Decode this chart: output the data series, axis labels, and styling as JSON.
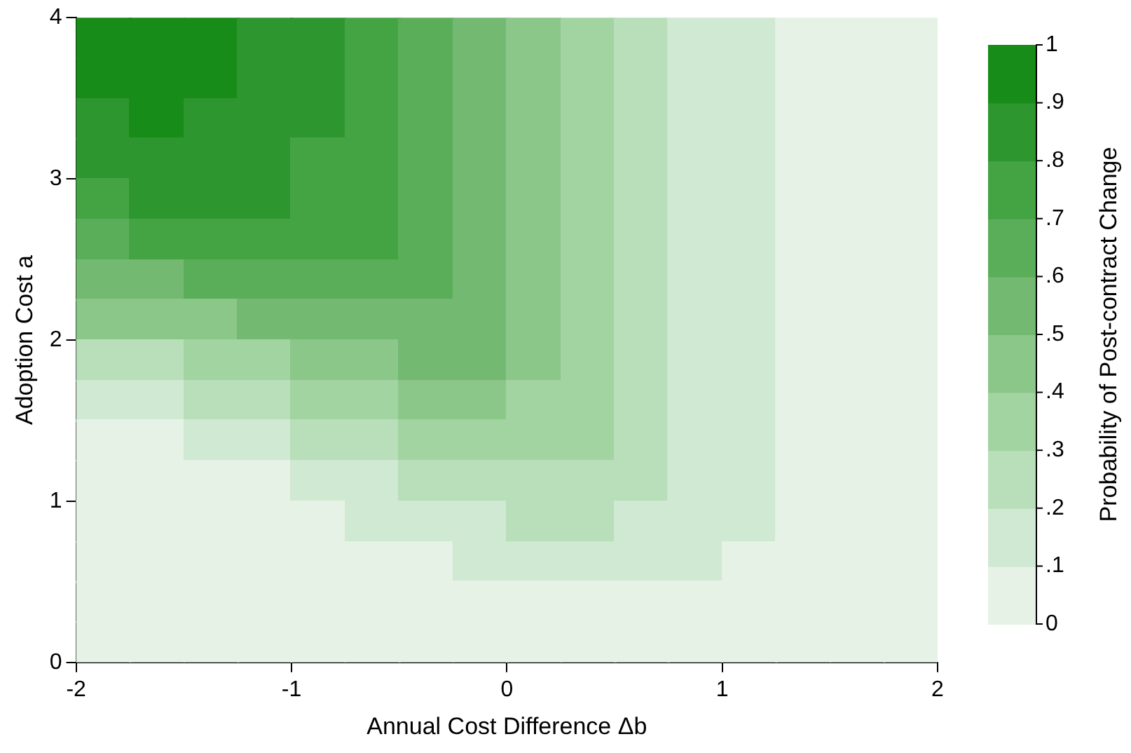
{
  "chart_data": {
    "type": "heatmap",
    "xlabel": "Annual Cost Difference Δb",
    "ylabel": "Adoption Cost a",
    "clabel": "Probability of Post-contract Change",
    "x": [
      -1.875,
      -1.625,
      -1.375,
      -1.125,
      -0.875,
      -0.625,
      -0.375,
      -0.125,
      0.125,
      0.375,
      0.625,
      0.875,
      1.125,
      1.375,
      1.625,
      1.875
    ],
    "y": [
      3.875,
      3.625,
      3.375,
      3.125,
      2.875,
      2.625,
      2.375,
      2.125,
      1.875,
      1.625,
      1.375,
      1.125,
      0.875,
      0.625,
      0.375,
      0.125
    ],
    "xlim": [
      -2,
      2
    ],
    "xticks": [
      -2,
      -1,
      0,
      1,
      2
    ],
    "ylim": [
      0,
      4
    ],
    "yticks": [
      0,
      1,
      2,
      3,
      4
    ],
    "grid": false,
    "clim": [
      0,
      1
    ],
    "cticks": [
      0,
      {
        "value": 0.1,
        "label": ".1"
      },
      {
        "value": 0.2,
        "label": ".2"
      },
      {
        "value": 0.3,
        "label": ".3"
      },
      {
        "value": 0.4,
        "label": ".4"
      },
      {
        "value": 0.5,
        "label": ".5"
      },
      {
        "value": 0.6,
        "label": ".6"
      },
      {
        "value": 0.7,
        "label": ".7"
      },
      {
        "value": 0.8,
        "label": ".8"
      },
      {
        "value": 0.9,
        "label": ".9"
      },
      1
    ],
    "colors": [
      "#e6f2e6",
      "#d0e9d2",
      "#b8dfb9",
      "#a2d4a2",
      "#8cc78a",
      "#73b972",
      "#5bae59",
      "#44a444",
      "#2e962e",
      "#188c18"
    ],
    "cells": [
      [
        0.95,
        0.95,
        0.95,
        0.85,
        0.85,
        0.75,
        0.65,
        0.55,
        0.45,
        0.35,
        0.25,
        0.15,
        0.15,
        0.05,
        0.05,
        0.05
      ],
      [
        0.95,
        0.95,
        0.95,
        0.85,
        0.85,
        0.75,
        0.65,
        0.55,
        0.45,
        0.35,
        0.25,
        0.15,
        0.15,
        0.05,
        0.05,
        0.05
      ],
      [
        0.85,
        0.95,
        0.85,
        0.85,
        0.85,
        0.75,
        0.65,
        0.55,
        0.45,
        0.35,
        0.25,
        0.15,
        0.15,
        0.05,
        0.05,
        0.05
      ],
      [
        0.85,
        0.85,
        0.85,
        0.85,
        0.75,
        0.75,
        0.65,
        0.55,
        0.45,
        0.35,
        0.25,
        0.15,
        0.15,
        0.05,
        0.05,
        0.05
      ],
      [
        0.75,
        0.85,
        0.85,
        0.85,
        0.75,
        0.75,
        0.65,
        0.55,
        0.45,
        0.35,
        0.25,
        0.15,
        0.15,
        0.05,
        0.05,
        0.05
      ],
      [
        0.65,
        0.75,
        0.75,
        0.75,
        0.75,
        0.75,
        0.65,
        0.55,
        0.45,
        0.35,
        0.25,
        0.15,
        0.15,
        0.05,
        0.05,
        0.05
      ],
      [
        0.55,
        0.55,
        0.65,
        0.65,
        0.65,
        0.65,
        0.65,
        0.55,
        0.45,
        0.35,
        0.25,
        0.15,
        0.15,
        0.05,
        0.05,
        0.05
      ],
      [
        0.45,
        0.45,
        0.45,
        0.55,
        0.55,
        0.55,
        0.55,
        0.55,
        0.45,
        0.35,
        0.25,
        0.15,
        0.15,
        0.05,
        0.05,
        0.05
      ],
      [
        0.25,
        0.25,
        0.35,
        0.35,
        0.45,
        0.45,
        0.55,
        0.55,
        0.45,
        0.35,
        0.25,
        0.15,
        0.15,
        0.05,
        0.05,
        0.05
      ],
      [
        0.15,
        0.15,
        0.25,
        0.25,
        0.35,
        0.35,
        0.45,
        0.45,
        0.35,
        0.35,
        0.25,
        0.15,
        0.15,
        0.05,
        0.05,
        0.05
      ],
      [
        0.05,
        0.05,
        0.15,
        0.15,
        0.25,
        0.25,
        0.35,
        0.35,
        0.35,
        0.35,
        0.25,
        0.15,
        0.15,
        0.05,
        0.05,
        0.05
      ],
      [
        0.05,
        0.05,
        0.05,
        0.05,
        0.15,
        0.15,
        0.25,
        0.25,
        0.25,
        0.25,
        0.25,
        0.15,
        0.15,
        0.05,
        0.05,
        0.05
      ],
      [
        0.05,
        0.05,
        0.05,
        0.05,
        0.05,
        0.15,
        0.15,
        0.15,
        0.25,
        0.25,
        0.15,
        0.15,
        0.15,
        0.05,
        0.05,
        0.05
      ],
      [
        0.05,
        0.05,
        0.05,
        0.05,
        0.05,
        0.05,
        0.05,
        0.15,
        0.15,
        0.15,
        0.15,
        0.15,
        0.05,
        0.05,
        0.05,
        0.05
      ],
      [
        0.05,
        0.05,
        0.05,
        0.05,
        0.05,
        0.05,
        0.05,
        0.05,
        0.05,
        0.05,
        0.05,
        0.05,
        0.05,
        0.05,
        0.05,
        0.05
      ],
      [
        0.05,
        0.05,
        0.05,
        0.05,
        0.05,
        0.05,
        0.05,
        0.05,
        0.05,
        0.05,
        0.05,
        0.05,
        0.05,
        0.05,
        0.05,
        0.05
      ]
    ]
  }
}
